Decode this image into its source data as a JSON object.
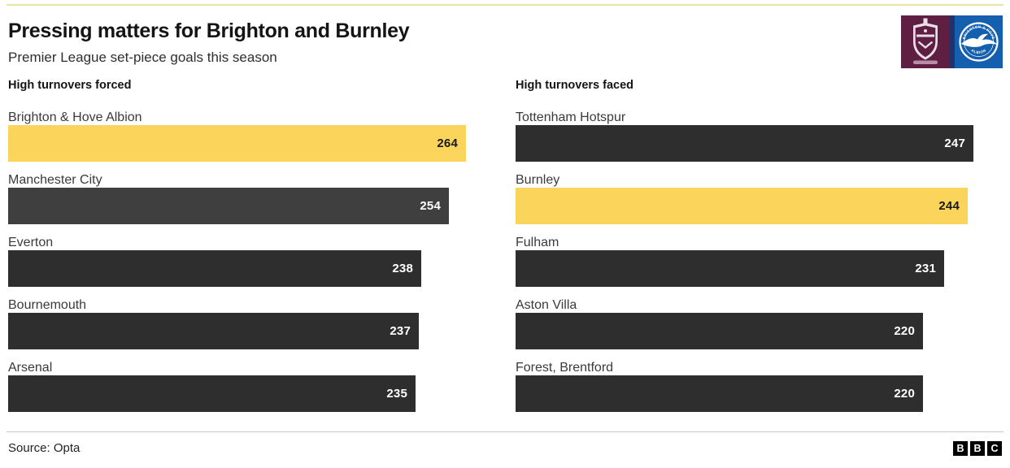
{
  "header": {
    "title": "Pressing matters for Brighton and Burnley",
    "subtitle": "Premier League set-piece goals this season"
  },
  "badges": [
    {
      "name": "Burnley crest",
      "primary_color": "#5E1F43"
    },
    {
      "name": "Brighton & Hove Albion crest",
      "primary_color": "#1560AE",
      "ring_text_top": "BRIGHTON & HOVE",
      "ring_text_bottom": "ALBION"
    }
  ],
  "colors": {
    "accent_yellow": "#FBD45B",
    "bar_dark": "#2E2E2E",
    "bar_dark_alt": "#3F3F3F",
    "top_rule": "#EBE5A0",
    "divider": "#C9C9C9"
  },
  "chart_data": [
    {
      "type": "bar",
      "orientation": "horizontal",
      "title": "High turnovers forced",
      "categories": [
        "Brighton & Hove Albion",
        "Manchester City",
        "Everton",
        "Bournemouth",
        "Arsenal"
      ],
      "values": [
        264,
        254,
        238,
        237,
        235
      ],
      "bar_colors": [
        "#FBD45B",
        "#3F3F3F",
        "#2E2E2E",
        "#2E2E2E",
        "#2E2E2E"
      ],
      "value_colors": [
        "#1A1A1A",
        "#FFFFFF",
        "#FFFFFF",
        "#FFFFFF",
        "#FFFFFF"
      ],
      "highlighted_category": "Brighton & Hove Albion",
      "xlim": [
        0,
        264
      ],
      "grid": false,
      "value_labels": "inside-end"
    },
    {
      "type": "bar",
      "orientation": "horizontal",
      "title": "High turnovers faced",
      "categories": [
        "Tottenham Hotspur",
        "Burnley",
        "Fulham",
        "Aston Villa",
        "Forest, Brentford"
      ],
      "values": [
        247,
        244,
        231,
        220,
        220
      ],
      "bar_colors": [
        "#2E2E2E",
        "#FBD45B",
        "#2E2E2E",
        "#2E2E2E",
        "#2E2E2E"
      ],
      "value_colors": [
        "#FFFFFF",
        "#1A1A1A",
        "#FFFFFF",
        "#FFFFFF",
        "#FFFFFF"
      ],
      "highlighted_category": "Burnley",
      "xlim": [
        0,
        247
      ],
      "grid": false,
      "value_labels": "inside-end"
    }
  ],
  "footer": {
    "source": "Source: Opta",
    "logo_letters": [
      "B",
      "B",
      "C"
    ]
  }
}
